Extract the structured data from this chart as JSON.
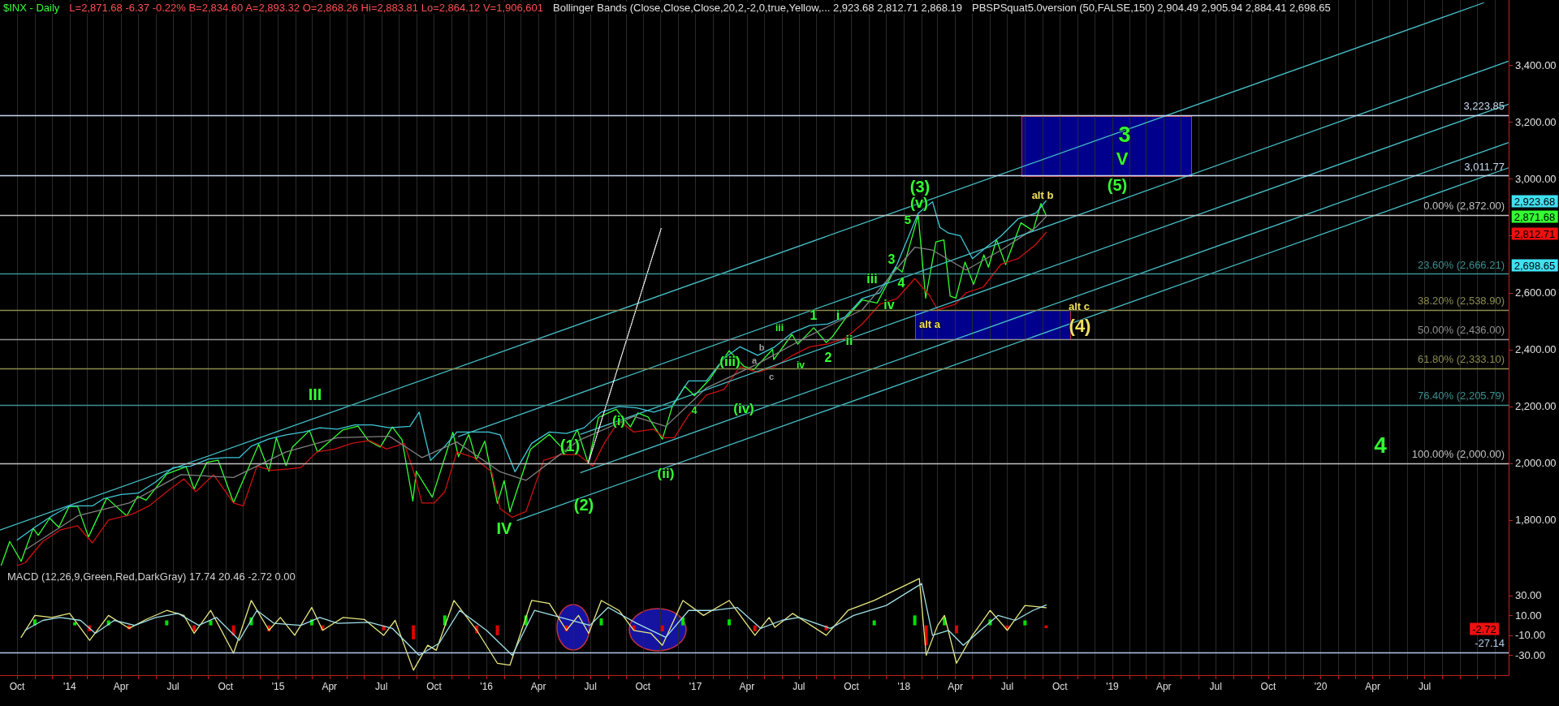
{
  "chart_data": [
    {
      "type": "line",
      "title": "$INX - Daily",
      "subtitle": "L=2,871.68 -6.37 -0.22% B=2,834.60 A=2,893.32 O=2,868.26 Hi=2,883.81 Lo=2,864.12 V=1,906,601",
      "xlim": [
        "2013-09-01",
        "2020-11-25"
      ],
      "ylim": [
        1640,
        3630
      ],
      "yticks": [
        {
          "value": 1800,
          "label": "1,800.00"
        },
        {
          "value": 2000,
          "label": "2,000.00"
        },
        {
          "value": 2200,
          "label": "2,200.00"
        },
        {
          "value": 2400,
          "label": "2,400.00"
        },
        {
          "value": 2600,
          "label": "2,600.00"
        },
        {
          "value": 2800,
          "label": null
        },
        {
          "value": 3000,
          "label": "3,000.00"
        },
        {
          "value": 3200,
          "label": "3,200.00"
        },
        {
          "value": 3400,
          "label": "3,400.00"
        }
      ],
      "xticks": [
        {
          "value": "2013-10",
          "label": null
        },
        {
          "value": "2013-11",
          "label": null
        },
        {
          "value": "2013-12",
          "label": null
        },
        {
          "value": "2014-01",
          "label": null
        },
        {
          "value": "2014-02",
          "label": null
        },
        {
          "value": "2014-03",
          "label": null
        },
        {
          "value": "2014-04",
          "label": null
        },
        {
          "value": "2014-05",
          "label": null
        },
        {
          "value": "2014-06",
          "label": null
        },
        {
          "value": "2014-07",
          "label": null
        },
        {
          "value": "2014-08",
          "label": null
        },
        {
          "value": "2014-09",
          "label": null
        },
        {
          "value": "2014-10",
          "label": null
        },
        {
          "value": "2014-11",
          "label": null
        },
        {
          "value": "2014-12",
          "label": null
        },
        {
          "value": "2015-01",
          "label": null
        },
        {
          "value": "2015-02",
          "label": null
        },
        {
          "value": "2015-03",
          "label": null
        },
        {
          "value": "2015-04",
          "label": null
        },
        {
          "value": "2015-05",
          "label": null
        },
        {
          "value": "2015-06",
          "label": null
        },
        {
          "value": "2015-07",
          "label": null
        },
        {
          "value": "2015-08",
          "label": null
        },
        {
          "value": "2015-09",
          "label": null
        },
        {
          "value": "2015-10",
          "label": null
        },
        {
          "value": "2015-11",
          "label": null
        },
        {
          "value": "2015-12",
          "label": null
        },
        {
          "value": "2016-01",
          "label": null
        },
        {
          "value": "2016-02",
          "label": null
        },
        {
          "value": "2016-03",
          "label": null
        },
        {
          "value": "2016-04",
          "label": null
        },
        {
          "value": "2016-05",
          "label": null
        },
        {
          "value": "2016-06",
          "label": null
        },
        {
          "value": "2016-07",
          "label": null
        },
        {
          "value": "2016-08",
          "label": null
        },
        {
          "value": "2016-09",
          "label": null
        },
        {
          "value": "2016-10",
          "label": null
        },
        {
          "value": "2016-11",
          "label": null
        },
        {
          "value": "2016-12",
          "label": null
        },
        {
          "value": "2017-01",
          "label": null
        },
        {
          "value": "2017-02",
          "label": null
        },
        {
          "value": "2017-03",
          "label": null
        },
        {
          "value": "2017-04",
          "label": null
        },
        {
          "value": "2017-05",
          "label": null
        },
        {
          "value": "2017-06",
          "label": null
        },
        {
          "value": "2017-07",
          "label": null
        },
        {
          "value": "2017-08",
          "label": null
        },
        {
          "value": "2017-09",
          "label": null
        },
        {
          "value": "2017-10",
          "label": null
        },
        {
          "value": "2017-11",
          "label": null
        },
        {
          "value": "2017-12",
          "label": null
        },
        {
          "value": "2018-01",
          "label": null
        },
        {
          "value": "2018-02",
          "label": null
        },
        {
          "value": "2018-03",
          "label": null
        },
        {
          "value": "2018-04",
          "label": null
        },
        {
          "value": "2018-05",
          "label": null
        },
        {
          "value": "2018-06",
          "label": null
        },
        {
          "value": "2018-07",
          "label": null
        },
        {
          "value": "2018-08",
          "label": null
        },
        {
          "value": "2018-09",
          "label": null
        },
        {
          "value": "2018-10",
          "label": null
        },
        {
          "value": "2018-11",
          "label": null
        },
        {
          "value": "2018-12",
          "label": null
        },
        {
          "value": "2019-01",
          "label": null
        },
        {
          "value": "2019-02",
          "label": null
        },
        {
          "value": "2019-03",
          "label": null
        },
        {
          "value": "2019-04",
          "label": null
        },
        {
          "value": "2019-05",
          "label": null
        },
        {
          "value": "2019-06",
          "label": null
        },
        {
          "value": "2019-07",
          "label": null
        },
        {
          "value": "2019-08",
          "label": null
        },
        {
          "value": "2019-09",
          "label": null
        },
        {
          "value": "2019-10",
          "label": null
        },
        {
          "value": "2019-11",
          "label": null
        },
        {
          "value": "2019-12",
          "label": null
        },
        {
          "value": "2020-01",
          "label": null
        },
        {
          "value": "2020-02",
          "label": null
        },
        {
          "value": "2020-03",
          "label": null
        },
        {
          "value": "2020-04",
          "label": null
        },
        {
          "value": "2020-05",
          "label": null
        },
        {
          "value": "2020-06",
          "label": null
        },
        {
          "value": "2020-07",
          "label": null
        },
        {
          "value": "2020-08",
          "label": null
        },
        {
          "value": "2020-09",
          "label": null
        },
        {
          "value": "2020-10",
          "label": null
        },
        {
          "value": "2020-11",
          "label": null
        }
      ],
      "tick_labels": "y",
      "grid": "x",
      "series": [
        {
          "color": "#33ff33",
          "x": [
            "2013-09-03",
            "2013-09-18",
            "2013-10-08",
            "2013-10-29",
            "2013-11-07",
            "2013-11-27",
            "2013-12-13",
            "2013-12-31",
            "2014-01-15",
            "2014-02-03",
            "2014-03-07",
            "2014-04-11",
            "2014-04-30",
            "2014-05-15",
            "2014-06-20",
            "2014-07-24",
            "2014-08-07",
            "2014-08-29",
            "2014-09-18",
            "2014-10-15",
            "2014-11-28",
            "2014-12-16",
            "2014-12-29",
            "2015-01-15",
            "2015-01-26",
            "2015-02-25",
            "2015-03-11",
            "2015-04-24",
            "2015-05-21",
            "2015-06-08",
            "2015-06-29",
            "2015-07-20",
            "2015-08-06",
            "2015-08-25",
            "2015-08-31",
            "2015-09-28",
            "2015-11-03",
            "2015-11-13",
            "2015-12-01",
            "2015-12-14",
            "2015-12-29",
            "2016-01-20",
            "2016-02-01",
            "2016-02-11",
            "2016-03-18",
            "2016-04-20",
            "2016-05-19",
            "2016-06-08",
            "2016-06-27",
            "2016-07-15",
            "2016-08-15",
            "2016-09-09",
            "2016-09-22",
            "2016-10-10",
            "2016-11-04",
            "2016-11-21",
            "2016-12-13",
            "2016-12-30",
            "2017-01-26",
            "2017-03-01",
            "2017-03-27",
            "2017-04-13",
            "2017-05-16",
            "2017-05-18",
            "2017-06-19",
            "2017-06-29",
            "2017-07-27",
            "2017-08-18",
            "2017-08-29",
            "2017-09-20",
            "2017-10-20",
            "2017-11-15",
            "2017-12-18",
            "2017-12-29",
            "2018-01-26",
            "2018-02-08",
            "2018-02-26",
            "2018-03-12",
            "2018-03-23",
            "2018-04-02",
            "2018-04-18",
            "2018-05-03",
            "2018-05-21",
            "2018-05-29",
            "2018-06-12",
            "2018-06-28",
            "2018-07-25",
            "2018-08-15",
            "2018-08-29",
            "2018-09-07"
          ],
          "values": [
            1640,
            1725,
            1655,
            1771,
            1747,
            1807,
            1775,
            1848,
            1848,
            1741,
            1878,
            1815,
            1884,
            1870,
            1962,
            1988,
            1910,
            2003,
            2011,
            1862,
            2067,
            1972,
            2090,
            1992,
            2057,
            2115,
            2040,
            2117,
            2131,
            2080,
            2057,
            2128,
            2083,
            1867,
            1972,
            1881,
            2109,
            2023,
            2102,
            2012,
            2078,
            1859,
            1939,
            1829,
            2049,
            2102,
            2040,
            2119,
            2000,
            2161,
            2190,
            2128,
            2177,
            2163,
            2085,
            2198,
            2271,
            2238,
            2296,
            2396,
            2341,
            2329,
            2401,
            2365,
            2453,
            2419,
            2477,
            2425,
            2446,
            2508,
            2575,
            2564,
            2690,
            2673,
            2873,
            2581,
            2779,
            2786,
            2588,
            2581,
            2708,
            2629,
            2733,
            2690,
            2787,
            2699,
            2846,
            2818,
            2914,
            2871.68
          ]
        },
        {
          "color": "#40c8d8",
          "x": [
            "2013-10-01",
            "2013-11-01",
            "2013-12-01",
            "2014-01-01",
            "2014-02-10",
            "2014-03-01",
            "2014-04-01",
            "2014-05-01",
            "2014-06-01",
            "2014-07-01",
            "2014-08-01",
            "2014-09-01",
            "2014-10-01",
            "2014-10-25",
            "2014-11-15",
            "2014-12-15",
            "2015-01-15",
            "2015-02-15",
            "2015-03-15",
            "2015-04-15",
            "2015-05-15",
            "2015-06-15",
            "2015-07-15",
            "2015-08-20",
            "2015-09-05",
            "2015-09-25",
            "2015-10-20",
            "2015-11-10",
            "2015-12-10",
            "2016-01-05",
            "2016-01-25",
            "2016-02-20",
            "2016-03-20",
            "2016-04-20",
            "2016-05-20",
            "2016-06-20",
            "2016-07-20",
            "2016-08-20",
            "2016-09-20",
            "2016-10-20",
            "2016-11-20",
            "2016-12-20",
            "2017-01-20",
            "2017-02-20",
            "2017-03-20",
            "2017-04-20",
            "2017-05-20",
            "2017-06-20",
            "2017-07-20",
            "2017-08-20",
            "2017-09-20",
            "2017-10-20",
            "2017-11-20",
            "2017-12-20",
            "2018-01-26",
            "2018-02-20",
            "2018-03-05",
            "2018-03-20",
            "2018-04-10",
            "2018-05-01",
            "2018-05-25",
            "2018-06-20",
            "2018-07-20",
            "2018-08-20",
            "2018-09-07"
          ],
          "values": [
            1730,
            1775,
            1815,
            1850,
            1850,
            1875,
            1890,
            1895,
            1935,
            1985,
            1990,
            2015,
            2020,
            2020,
            2060,
            2085,
            2100,
            2110,
            2125,
            2120,
            2135,
            2135,
            2125,
            2130,
            2180,
            2010,
            2060,
            2110,
            2110,
            2110,
            2100,
            1970,
            2070,
            2110,
            2105,
            2125,
            2180,
            2200,
            2195,
            2180,
            2200,
            2290,
            2290,
            2370,
            2410,
            2380,
            2410,
            2460,
            2485,
            2490,
            2515,
            2580,
            2600,
            2700,
            2880,
            2920,
            2830,
            2810,
            2800,
            2720,
            2760,
            2800,
            2860,
            2880,
            2923.68
          ]
        },
        {
          "color": "#cc1010",
          "x": [
            "2013-10-01",
            "2013-10-15",
            "2013-11-15",
            "2013-12-15",
            "2014-01-15",
            "2014-02-10",
            "2014-03-10",
            "2014-04-20",
            "2014-05-20",
            "2014-06-20",
            "2014-07-20",
            "2014-08-10",
            "2014-09-10",
            "2014-10-15",
            "2014-11-01",
            "2014-11-25",
            "2014-12-20",
            "2015-01-20",
            "2015-02-10",
            "2015-03-10",
            "2015-04-10",
            "2015-05-10",
            "2015-06-10",
            "2015-07-10",
            "2015-08-10",
            "2015-08-28",
            "2015-09-10",
            "2015-10-01",
            "2015-10-20",
            "2015-11-10",
            "2015-12-10",
            "2016-01-10",
            "2016-01-25",
            "2016-02-15",
            "2016-03-10",
            "2016-04-10",
            "2016-05-10",
            "2016-06-10",
            "2016-07-05",
            "2016-07-25",
            "2016-08-20",
            "2016-09-15",
            "2016-10-20",
            "2016-11-07",
            "2016-11-25",
            "2016-12-20",
            "2017-01-20",
            "2017-02-20",
            "2017-03-20",
            "2017-04-20",
            "2017-05-20",
            "2017-06-20",
            "2017-07-20",
            "2017-08-20",
            "2017-09-20",
            "2017-10-20",
            "2017-11-20",
            "2017-12-20",
            "2018-01-20",
            "2018-02-15",
            "2018-03-01",
            "2018-04-01",
            "2018-04-20",
            "2018-05-20",
            "2018-06-20",
            "2018-07-20",
            "2018-08-20",
            "2018-09-07"
          ],
          "values": [
            1640,
            1650,
            1725,
            1765,
            1780,
            1720,
            1800,
            1820,
            1850,
            1900,
            1945,
            1900,
            1960,
            1860,
            1850,
            1990,
            1975,
            1980,
            1985,
            2040,
            2050,
            2070,
            2080,
            2050,
            2070,
            1960,
            1860,
            1860,
            1900,
            2040,
            2020,
            1970,
            1840,
            1810,
            1830,
            2010,
            2030,
            2030,
            1990,
            2070,
            2150,
            2110,
            2120,
            2090,
            2090,
            2170,
            2240,
            2260,
            2340,
            2320,
            2340,
            2380,
            2410,
            2420,
            2440,
            2490,
            2560,
            2580,
            2650,
            2590,
            2540,
            2560,
            2600,
            2620,
            2700,
            2720,
            2770,
            2812.71
          ]
        },
        {
          "color": "#808080",
          "x": [
            "2013-10-15",
            "2014-01-15",
            "2014-04-15",
            "2014-07-15",
            "2014-10-15",
            "2015-01-15",
            "2015-04-15",
            "2015-07-15",
            "2015-09-10",
            "2015-11-10",
            "2016-01-25",
            "2016-03-10",
            "2016-06-10",
            "2016-09-15",
            "2016-11-10",
            "2017-01-20",
            "2017-04-20",
            "2017-07-20",
            "2017-10-20",
            "2018-01-20",
            "2018-02-20",
            "2018-04-20",
            "2018-06-20",
            "2018-08-20",
            "2018-09-07"
          ],
          "values": [
            1695,
            1815,
            1860,
            1960,
            1950,
            2040,
            2090,
            2095,
            2020,
            2075,
            1970,
            1940,
            2080,
            2165,
            2130,
            2265,
            2350,
            2450,
            2540,
            2760,
            2750,
            2680,
            2750,
            2830,
            2868.19
          ]
        },
        {
          "color": "#48c0c8",
          "x": [
            "2013-09-01",
            "2020-10-12"
          ],
          "values": [
            1765,
            3620
          ]
        },
        {
          "color": "#48c0c8",
          "x": [
            "2015-11-13",
            "2020-11-24"
          ],
          "values": [
            2094,
            3414
          ]
        },
        {
          "color": "#48c0c8",
          "x": [
            "2016-06-14",
            "2020-11-24"
          ],
          "values": [
            2102,
            3263
          ]
        },
        {
          "color": "#48c0c8",
          "x": [
            "2016-06-14",
            "2020-11-24"
          ],
          "values": [
            1967,
            3128
          ]
        },
        {
          "color": "#48c0c8",
          "x": [
            "2016-02-24",
            "2020-11-24"
          ],
          "values": [
            1799,
            3039
          ]
        },
        {
          "color": "#ffffff",
          "line_style": "dotted",
          "x": [
            "2016-06-27",
            "2016-11-02"
          ],
          "values": [
            2000,
            2827
          ]
        }
      ],
      "ref_lines": [
        {
          "axis": "y",
          "value": 3223.85,
          "label": "3,223.85",
          "color": "#c8d8f0"
        },
        {
          "axis": "y",
          "value": 3011.77,
          "label": "3,011.77",
          "color": "#c8d8f0"
        },
        {
          "axis": "y",
          "value": 2872,
          "label": "0.00% (2,872.00)",
          "color": "#c0c0c0"
        },
        {
          "axis": "y",
          "value": 2666.21,
          "label": "23.60% (2,666.21)",
          "color": "#3c9090"
        },
        {
          "axis": "y",
          "value": 2538.9,
          "label": "38.20% (2,538.90)",
          "color": "#8c8c50"
        },
        {
          "axis": "y",
          "value": 2436,
          "label": "50.00% (2,436.00)",
          "color": "#909090"
        },
        {
          "axis": "y",
          "value": 2333.1,
          "label": "61.80% (2,333.10)",
          "color": "#8c8c50"
        },
        {
          "axis": "y",
          "value": 2205.79,
          "label": "76.40% (2,205.79)",
          "color": "#3c9090"
        },
        {
          "axis": "y",
          "value": 2000,
          "label": "100.00% (2,000.00)",
          "color": "#c0c0c0"
        }
      ],
      "annotations": [
        "Bollinger Bands (Close,Close,Close,20,2,-2,0,true,Yellow,... 2,923.68 2,812.71 2,868.19",
        "PBSPSquat5.0version (50,FALSE,150) 2,904.49 2,905.94 2,884.41 2,698.65",
        "III",
        "IV",
        "(1)",
        "(2)",
        "(i)",
        "(ii)",
        "4",
        "(iii)",
        "(iv)",
        "b",
        "a",
        "c",
        "iii",
        "iv",
        "1",
        "2",
        "i",
        "ii",
        "iii",
        "iv",
        "3",
        "4",
        "5",
        "(v)",
        "(3)",
        "alt a",
        "alt b",
        "alt c",
        "(4)",
        "3",
        "V",
        "(5)",
        "4",
        "2,923.68",
        "2,871.68",
        "2,812.71",
        "2,698.65"
      ]
    },
    {
      "type": "line",
      "title": "MACD (12,26,9,Green,Red,DarkGray) 17.74 20.46 -2.72 0.00",
      "xlim": [
        "2013-09-01",
        "2020-11-25"
      ],
      "ylim": [
        -50,
        60
      ],
      "yticks": [
        {
          "value": -30,
          "label": "-30.00"
        },
        {
          "value": -10,
          "label": "-10.00"
        },
        {
          "value": 10,
          "label": "10.00"
        },
        {
          "value": 30,
          "label": "30.00"
        }
      ],
      "xticks": [
        {
          "value": "2013-10",
          "label": "Oct"
        },
        {
          "value": "2013-11",
          "label": null
        },
        {
          "value": "2013-12",
          "label": null
        },
        {
          "value": "2014-01",
          "label": "'14"
        },
        {
          "value": "2014-02",
          "label": null
        },
        {
          "value": "2014-03",
          "label": null
        },
        {
          "value": "2014-04",
          "label": "Apr"
        },
        {
          "value": "2014-05",
          "label": null
        },
        {
          "value": "2014-06",
          "label": null
        },
        {
          "value": "2014-07",
          "label": "Jul"
        },
        {
          "value": "2014-08",
          "label": null
        },
        {
          "value": "2014-09",
          "label": null
        },
        {
          "value": "2014-10",
          "label": "Oct"
        },
        {
          "value": "2014-11",
          "label": null
        },
        {
          "value": "2014-12",
          "label": null
        },
        {
          "value": "2015-01",
          "label": "'15"
        },
        {
          "value": "2015-02",
          "label": null
        },
        {
          "value": "2015-03",
          "label": null
        },
        {
          "value": "2015-04",
          "label": "Apr"
        },
        {
          "value": "2015-05",
          "label": null
        },
        {
          "value": "2015-06",
          "label": null
        },
        {
          "value": "2015-07",
          "label": "Jul"
        },
        {
          "value": "2015-08",
          "label": null
        },
        {
          "value": "2015-09",
          "label": null
        },
        {
          "value": "2015-10",
          "label": "Oct"
        },
        {
          "value": "2015-11",
          "label": null
        },
        {
          "value": "2015-12",
          "label": null
        },
        {
          "value": "2016-01",
          "label": "'16"
        },
        {
          "value": "2016-02",
          "label": null
        },
        {
          "value": "2016-03",
          "label": null
        },
        {
          "value": "2016-04",
          "label": "Apr"
        },
        {
          "value": "2016-05",
          "label": null
        },
        {
          "value": "2016-06",
          "label": null
        },
        {
          "value": "2016-07",
          "label": "Jul"
        },
        {
          "value": "2016-08",
          "label": null
        },
        {
          "value": "2016-09",
          "label": null
        },
        {
          "value": "2016-10",
          "label": "Oct"
        },
        {
          "value": "2016-11",
          "label": null
        },
        {
          "value": "2016-12",
          "label": null
        },
        {
          "value": "2017-01",
          "label": "'17"
        },
        {
          "value": "2017-02",
          "label": null
        },
        {
          "value": "2017-03",
          "label": null
        },
        {
          "value": "2017-04",
          "label": "Apr"
        },
        {
          "value": "2017-05",
          "label": null
        },
        {
          "value": "2017-06",
          "label": null
        },
        {
          "value": "2017-07",
          "label": "Jul"
        },
        {
          "value": "2017-08",
          "label": null
        },
        {
          "value": "2017-09",
          "label": null
        },
        {
          "value": "2017-10",
          "label": "Oct"
        },
        {
          "value": "2017-11",
          "label": null
        },
        {
          "value": "2017-12",
          "label": null
        },
        {
          "value": "2018-01",
          "label": "'18"
        },
        {
          "value": "2018-02",
          "label": null
        },
        {
          "value": "2018-03",
          "label": null
        },
        {
          "value": "2018-04",
          "label": "Apr"
        },
        {
          "value": "2018-05",
          "label": null
        },
        {
          "value": "2018-06",
          "label": null
        },
        {
          "value": "2018-07",
          "label": "Jul"
        },
        {
          "value": "2018-08",
          "label": null
        },
        {
          "value": "2018-09",
          "label": null
        },
        {
          "value": "2018-10",
          "label": "Oct"
        },
        {
          "value": "2018-11",
          "label": null
        },
        {
          "value": "2018-12",
          "label": null
        },
        {
          "value": "2019-01",
          "label": "'19"
        },
        {
          "value": "2019-02",
          "label": null
        },
        {
          "value": "2019-03",
          "label": null
        },
        {
          "value": "2019-04",
          "label": "Apr"
        },
        {
          "value": "2019-05",
          "label": null
        },
        {
          "value": "2019-06",
          "label": null
        },
        {
          "value": "2019-07",
          "label": "Jul"
        },
        {
          "value": "2019-08",
          "label": null
        },
        {
          "value": "2019-09",
          "label": null
        },
        {
          "value": "2019-10",
          "label": "Oct"
        },
        {
          "value": "2019-11",
          "label": null
        },
        {
          "value": "2019-12",
          "label": null
        },
        {
          "value": "2020-01",
          "label": "'20"
        },
        {
          "value": "2020-02",
          "label": null
        },
        {
          "value": "2020-03",
          "label": null
        },
        {
          "value": "2020-04",
          "label": "Apr"
        },
        {
          "value": "2020-05",
          "label": null
        },
        {
          "value": "2020-06",
          "label": null
        },
        {
          "value": "2020-07",
          "label": "Jul"
        },
        {
          "value": "2020-08",
          "label": null
        },
        {
          "value": "2020-09",
          "label": null
        },
        {
          "value": "2020-10",
          "label": null
        },
        {
          "value": "2020-11",
          "label": null
        }
      ],
      "grid": "x",
      "series": [
        {
          "type": "bar",
          "x": [
            "2013-11-01",
            "2014-01-10",
            "2014-02-05",
            "2014-03-10",
            "2014-04-15",
            "2014-06-20",
            "2014-08-07",
            "2014-09-05",
            "2014-10-15",
            "2014-11-15",
            "2014-12-16",
            "2015-03-01",
            "2015-03-20",
            "2015-07-05",
            "2015-08-26",
            "2015-10-20",
            "2015-12-15",
            "2016-01-20",
            "2016-03-10",
            "2016-05-20",
            "2016-07-20",
            "2016-09-15",
            "2016-11-04",
            "2016-12-10",
            "2017-03-01",
            "2017-04-15",
            "2017-08-18",
            "2017-11-10",
            "2018-01-20",
            "2018-02-09",
            "2018-03-13",
            "2018-04-03",
            "2018-06-01",
            "2018-07-01",
            "2018-08-01",
            "2018-09-07"
          ],
          "values": [
            6,
            3,
            -6,
            5,
            -4,
            5,
            -6,
            5,
            -10,
            8,
            -6,
            6,
            -5,
            -5,
            -14,
            10,
            -8,
            -10,
            10,
            -6,
            7,
            -5,
            -6,
            8,
            6,
            -6,
            -5,
            5,
            10,
            -20,
            8,
            -8,
            6,
            -4,
            5,
            -2.72
          ],
          "colors": [
            "#00e000",
            "#00e000",
            "#e00000",
            "#00e000",
            "#e00000",
            "#00e000",
            "#e00000",
            "#00e000",
            "#e00000",
            "#00e000",
            "#e00000",
            "#00e000",
            "#e00000",
            "#e00000",
            "#e00000",
            "#00e000",
            "#e00000",
            "#e00000",
            "#00e000",
            "#e00000",
            "#00e000",
            "#e00000",
            "#e00000",
            "#00e000",
            "#00e000",
            "#e00000",
            "#e00000",
            "#00e000",
            "#00e000",
            "#e00000",
            "#00e000",
            "#e00000",
            "#00e000",
            "#e00000",
            "#00e000",
            "#e00000"
          ]
        },
        {
          "color": "#e8e880",
          "x": [
            "2013-10-08",
            "2013-11-01",
            "2013-12-01",
            "2014-01-01",
            "2014-02-05",
            "2014-03-10",
            "2014-04-15",
            "2014-05-15",
            "2014-06-20",
            "2014-07-20",
            "2014-08-07",
            "2014-09-05",
            "2014-10-15",
            "2014-11-15",
            "2014-12-16",
            "2015-01-05",
            "2015-01-30",
            "2015-03-01",
            "2015-03-20",
            "2015-04-25",
            "2015-06-01",
            "2015-07-05",
            "2015-07-25",
            "2015-08-26",
            "2015-09-20",
            "2015-10-05",
            "2015-11-05",
            "2015-12-15",
            "2016-01-20",
            "2016-02-11",
            "2016-03-20",
            "2016-04-20",
            "2016-05-20",
            "2016-06-10",
            "2016-06-28",
            "2016-07-20",
            "2016-08-20",
            "2016-09-15",
            "2016-10-15",
            "2016-11-04",
            "2016-12-10",
            "2017-01-15",
            "2017-03-01",
            "2017-04-15",
            "2017-05-10",
            "2017-05-20",
            "2017-06-20",
            "2017-08-18",
            "2017-09-25",
            "2017-11-10",
            "2018-01-28",
            "2018-02-09",
            "2018-03-01",
            "2018-03-13",
            "2018-04-03",
            "2018-05-01",
            "2018-06-01",
            "2018-07-01",
            "2018-08-01",
            "2018-09-07"
          ],
          "values": [
            -12,
            10,
            8,
            12,
            -15,
            10,
            -3,
            6,
            15,
            10,
            -8,
            15,
            -28,
            25,
            -5,
            8,
            -10,
            18,
            -5,
            8,
            6,
            -10,
            5,
            -45,
            -20,
            -25,
            25,
            -5,
            -38,
            -40,
            25,
            22,
            -5,
            10,
            -8,
            25,
            15,
            -5,
            -8,
            -20,
            25,
            10,
            25,
            -10,
            8,
            -2,
            12,
            -10,
            15,
            25,
            47,
            -30,
            0,
            10,
            -38,
            -10,
            15,
            -5,
            20,
            17.74
          ]
        },
        {
          "color": "#a0e0e8",
          "x": [
            "2013-10-15",
            "2013-11-15",
            "2013-12-15",
            "2014-01-20",
            "2014-02-15",
            "2014-03-20",
            "2014-04-25",
            "2014-06-01",
            "2014-07-10",
            "2014-08-15",
            "2014-09-15",
            "2014-10-25",
            "2014-11-25",
            "2014-12-25",
            "2015-02-10",
            "2015-03-15",
            "2015-04-15",
            "2015-06-10",
            "2015-07-20",
            "2015-09-05",
            "2015-10-10",
            "2015-11-15",
            "2016-01-01",
            "2016-02-15",
            "2016-03-25",
            "2016-05-10",
            "2016-06-30",
            "2016-08-01",
            "2016-09-20",
            "2016-11-10",
            "2016-12-20",
            "2017-02-01",
            "2017-03-15",
            "2017-04-25",
            "2017-06-01",
            "2017-07-01",
            "2017-08-25",
            "2017-10-05",
            "2017-12-01",
            "2018-02-01",
            "2018-02-20",
            "2018-03-20",
            "2018-04-15",
            "2018-05-15",
            "2018-06-15",
            "2018-07-15",
            "2018-08-15",
            "2018-09-07"
          ],
          "values": [
            -5,
            5,
            8,
            5,
            -8,
            5,
            0,
            8,
            12,
            0,
            8,
            -15,
            15,
            2,
            0,
            8,
            2,
            3,
            -3,
            -30,
            -18,
            15,
            -5,
            -30,
            15,
            8,
            0,
            18,
            2,
            -12,
            15,
            15,
            18,
            -3,
            5,
            8,
            -3,
            10,
            20,
            42,
            -10,
            -5,
            -20,
            -5,
            10,
            5,
            15,
            20.46
          ]
        }
      ],
      "ref_lines": [
        {
          "axis": "y",
          "value": -27.14,
          "label": "-27.14",
          "color": "#b0c8e8"
        }
      ],
      "annotations": [
        "-2.72"
      ]
    }
  ]
}
